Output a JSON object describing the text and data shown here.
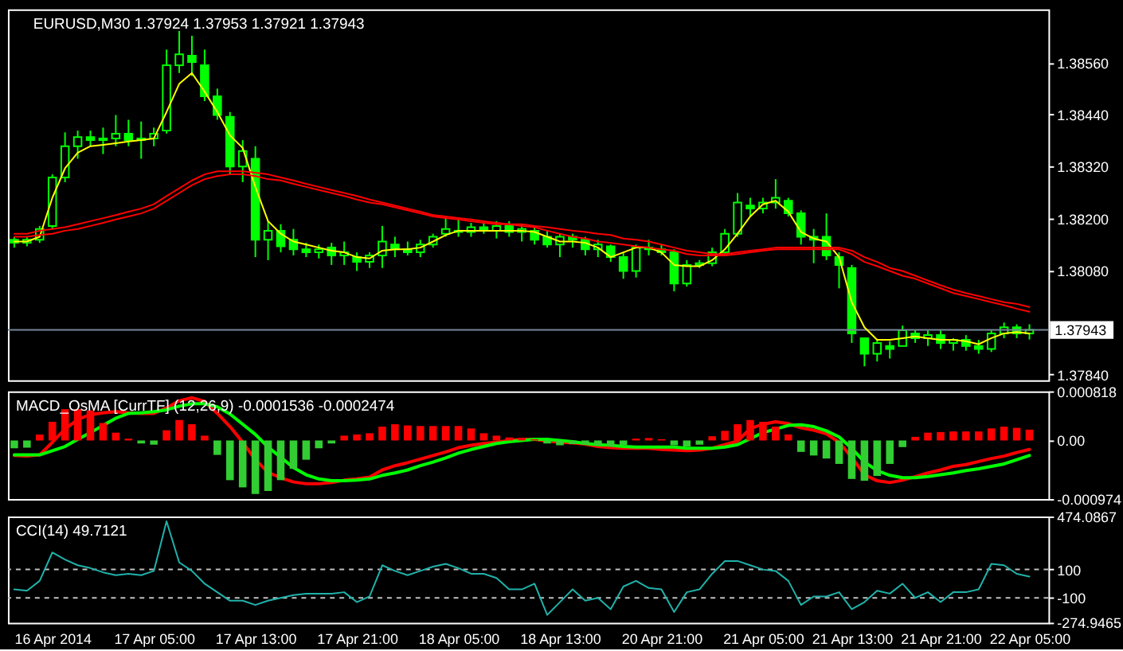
{
  "chart_data": [
    {
      "type": "candlestick",
      "title": "EURUSD,M30 1.37924 1.37953 1.37921 1.37943",
      "color": "#00ff00",
      "tick_labels": "y",
      "categories": [
        null,
        null,
        null,
        null,
        null,
        null,
        null,
        null,
        null,
        null,
        null,
        null,
        null,
        null,
        null,
        null,
        null,
        null,
        null,
        null,
        null,
        null,
        null,
        null,
        null,
        null,
        null,
        null,
        null,
        null,
        null,
        null,
        null,
        null,
        null,
        null,
        null,
        null,
        null,
        null,
        null,
        null,
        null,
        null,
        null,
        null,
        null,
        null,
        null,
        null,
        null,
        null,
        null,
        null,
        null,
        null,
        null,
        null,
        null,
        null,
        null,
        null,
        null,
        null,
        null,
        null,
        null,
        null,
        null,
        null,
        null,
        null,
        null,
        null,
        null,
        null,
        null,
        null,
        null,
        null,
        null
      ],
      "ohlc": [
        [
          1.38151,
          1.38158,
          1.38133,
          1.38144
        ],
        [
          1.38144,
          1.38158,
          1.38136,
          1.38151
        ],
        [
          1.38151,
          1.38183,
          1.38144,
          1.38176
        ],
        [
          1.38183,
          1.38302,
          1.38176,
          1.38295
        ],
        [
          1.38295,
          1.38399,
          1.38284,
          1.38367
        ],
        [
          1.38367,
          1.38403,
          1.38338,
          1.38388
        ],
        [
          1.38388,
          1.38403,
          1.38367,
          1.38381
        ],
        [
          1.38381,
          1.3841,
          1.38349,
          1.38385
        ],
        [
          1.38385,
          1.38439,
          1.38367,
          1.38396
        ],
        [
          1.38396,
          1.38428,
          1.38367,
          1.38381
        ],
        [
          1.38381,
          1.38424,
          1.38338,
          1.38385
        ],
        [
          1.38385,
          1.3841,
          1.38367,
          1.38396
        ],
        [
          1.38403,
          1.3859,
          1.38396,
          1.38554
        ],
        [
          1.38554,
          1.38633,
          1.38536,
          1.38579
        ],
        [
          1.38576,
          1.38622,
          1.38529,
          1.38561
        ],
        [
          1.38554,
          1.3859,
          1.38471,
          1.38482
        ],
        [
          1.38482,
          1.385,
          1.38428,
          1.38439
        ],
        [
          1.38435,
          1.38446,
          1.38302,
          1.3832
        ],
        [
          1.3832,
          1.38381,
          1.38284,
          1.38356
        ],
        [
          1.38338,
          1.38367,
          1.38111,
          1.38151
        ],
        [
          1.38151,
          1.38194,
          1.38104,
          1.38172
        ],
        [
          1.38172,
          1.38187,
          1.38122,
          1.38136
        ],
        [
          1.38151,
          1.38176,
          1.38115,
          1.38129
        ],
        [
          1.38129,
          1.38144,
          1.38111,
          1.38122
        ],
        [
          1.38122,
          1.3814,
          1.38108,
          1.38129
        ],
        [
          1.38133,
          1.38144,
          1.38093,
          1.38115
        ],
        [
          1.38115,
          1.38147,
          1.38093,
          1.38122
        ],
        [
          1.38111,
          1.38122,
          1.38079,
          1.381
        ],
        [
          1.381,
          1.38122,
          1.38086,
          1.38115
        ],
        [
          1.38115,
          1.38183,
          1.38086,
          1.38147
        ],
        [
          1.3814,
          1.38158,
          1.38111,
          1.38129
        ],
        [
          1.38129,
          1.38147,
          1.38115,
          1.38122
        ],
        [
          1.38122,
          1.38151,
          1.38111,
          1.3814
        ],
        [
          1.3814,
          1.38165,
          1.38133,
          1.38158
        ],
        [
          1.38165,
          1.38205,
          1.38158,
          1.38176
        ],
        [
          1.38172,
          1.38201,
          1.38158,
          1.38169
        ],
        [
          1.38169,
          1.3819,
          1.38158,
          1.3818
        ],
        [
          1.3818,
          1.38194,
          1.38165,
          1.38172
        ],
        [
          1.38172,
          1.38194,
          1.38154,
          1.38183
        ],
        [
          1.38183,
          1.38194,
          1.38158,
          1.38169
        ],
        [
          1.38169,
          1.38187,
          1.38147,
          1.38176
        ],
        [
          1.38172,
          1.38183,
          1.3814,
          1.38151
        ],
        [
          1.38158,
          1.38172,
          1.38133,
          1.3814
        ],
        [
          1.3814,
          1.38165,
          1.38111,
          1.38158
        ],
        [
          1.38158,
          1.38165,
          1.38133,
          1.38151
        ],
        [
          1.38151,
          1.38158,
          1.38115,
          1.38129
        ],
        [
          1.38129,
          1.38151,
          1.38111,
          1.3814
        ],
        [
          1.38136,
          1.3814,
          1.381,
          1.38111
        ],
        [
          1.38111,
          1.38122,
          1.38061,
          1.38079
        ],
        [
          1.38079,
          1.3814,
          1.38064,
          1.38133
        ],
        [
          1.38133,
          1.38151,
          1.38115,
          1.38129
        ],
        [
          1.38129,
          1.3814,
          1.38115,
          1.38122
        ],
        [
          1.38122,
          1.38129,
          1.38032,
          1.3805
        ],
        [
          1.3805,
          1.38104,
          1.38043,
          1.38093
        ],
        [
          1.38093,
          1.38104,
          1.38086,
          1.38097
        ],
        [
          1.38097,
          1.38133,
          1.3809,
          1.38122
        ],
        [
          1.38122,
          1.38176,
          1.38115,
          1.38165
        ],
        [
          1.38165,
          1.38259,
          1.38158,
          1.38237
        ],
        [
          1.3823,
          1.38248,
          1.38205,
          1.38223
        ],
        [
          1.38223,
          1.38248,
          1.38212,
          1.38237
        ],
        [
          1.38237,
          1.38291,
          1.38223,
          1.38248
        ],
        [
          1.38241,
          1.38248,
          1.38205,
          1.38212
        ],
        [
          1.38212,
          1.38219,
          1.3814,
          1.38158
        ],
        [
          1.38158,
          1.38176,
          1.38097,
          1.38151
        ],
        [
          1.38158,
          1.38212,
          1.38104,
          1.38115
        ],
        [
          1.38111,
          1.38122,
          1.38039,
          1.38093
        ],
        [
          1.38086,
          1.38093,
          1.37913,
          1.37935
        ],
        [
          1.37924,
          1.37924,
          1.37859,
          1.37888
        ],
        [
          1.37888,
          1.3792,
          1.3787,
          1.37913
        ],
        [
          1.37906,
          1.37917,
          1.37877,
          1.37899
        ],
        [
          1.37906,
          1.37953,
          1.37906,
          1.37942
        ],
        [
          1.37935,
          1.37942,
          1.37913,
          1.37924
        ],
        [
          1.37924,
          1.37942,
          1.37906,
          1.37931
        ],
        [
          1.37931,
          1.37942,
          1.37899,
          1.37913
        ],
        [
          1.37913,
          1.37924,
          1.37895,
          1.3792
        ],
        [
          1.3792,
          1.37931,
          1.37895,
          1.37906
        ],
        [
          1.37906,
          1.3792,
          1.37888,
          1.37899
        ],
        [
          1.37899,
          1.37942,
          1.37892,
          1.37935
        ],
        [
          1.37935,
          1.3796,
          1.37924,
          1.37949
        ],
        [
          1.37949,
          1.37956,
          1.37924,
          1.37935
        ],
        [
          1.37935,
          1.37956,
          1.37921,
          1.37943
        ]
      ],
      "series": [
        {
          "type": "line",
          "color": "#ffff00",
          "values": [
            1.38147,
            1.38147,
            1.38158,
            1.38248,
            1.38316,
            1.38352,
            1.38367,
            1.3837,
            1.38374,
            1.38378,
            1.38381,
            1.38385,
            1.38446,
            1.38511,
            1.38536,
            1.38493,
            1.38446,
            1.38392,
            1.38363,
            1.38273,
            1.38194,
            1.38165,
            1.38147,
            1.3814,
            1.38133,
            1.38126,
            1.38122,
            1.38111,
            1.38108,
            1.38126,
            1.38129,
            1.38129,
            1.38133,
            1.38147,
            1.38162,
            1.38172,
            1.38172,
            1.38172,
            1.38172,
            1.38172,
            1.38172,
            1.38169,
            1.38158,
            1.38147,
            1.38147,
            1.38144,
            1.38133,
            1.38111,
            1.38122,
            1.38133,
            1.38133,
            1.38122,
            1.38093,
            1.3809,
            1.3809,
            1.38104,
            1.38129,
            1.38165,
            1.38205,
            1.38233,
            1.38241,
            1.38216,
            1.38169,
            1.38154,
            1.38147,
            1.38111,
            1.38007,
            1.37949,
            1.3792,
            1.3792,
            1.37924,
            1.37928,
            1.37924,
            1.3792,
            1.3792,
            1.37917,
            1.3791,
            1.37924,
            1.37935,
            1.37938,
            1.37935
          ]
        },
        {
          "type": "line",
          "color": "#ff0000",
          "values": [
            1.38165,
            1.38165,
            1.38172,
            1.38176,
            1.3818,
            1.38187,
            1.38194,
            1.38201,
            1.38208,
            1.38216,
            1.38223,
            1.38233,
            1.38252,
            1.3827,
            1.38288,
            1.38302,
            1.38309,
            1.38309,
            1.38309,
            1.38306,
            1.38302,
            1.38295,
            1.38288,
            1.3828,
            1.38273,
            1.38266,
            1.38259,
            1.38252,
            1.38244,
            1.38237,
            1.3823,
            1.38223,
            1.38216,
            1.38208,
            1.38205,
            1.38201,
            1.38198,
            1.38194,
            1.3819,
            1.38187,
            1.38187,
            1.38183,
            1.3818,
            1.38176,
            1.38172,
            1.38169,
            1.38165,
            1.38162,
            1.38154,
            1.38151,
            1.38147,
            1.3814,
            1.38133,
            1.38126,
            1.38122,
            1.38118,
            1.38118,
            1.38122,
            1.38126,
            1.38129,
            1.38133,
            1.38133,
            1.38133,
            1.38133,
            1.38133,
            1.38133,
            1.38126,
            1.38111,
            1.381,
            1.38086,
            1.38079,
            1.38068,
            1.38057,
            1.38046,
            1.38036,
            1.38028,
            1.38021,
            1.38014,
            1.38007,
            1.38003,
            1.37996
          ]
        },
        {
          "type": "line",
          "color": "#ff0000",
          "values": [
            1.38158,
            1.38158,
            1.38162,
            1.38165,
            1.38172,
            1.38176,
            1.38183,
            1.3819,
            1.38198,
            1.38205,
            1.38212,
            1.38223,
            1.38241,
            1.38259,
            1.38277,
            1.38291,
            1.38298,
            1.38302,
            1.38302,
            1.38298,
            1.38291,
            1.38288,
            1.3828,
            1.38273,
            1.38266,
            1.38259,
            1.38252,
            1.38244,
            1.38237,
            1.38233,
            1.38226,
            1.38219,
            1.38212,
            1.38205,
            1.38201,
            1.38198,
            1.38194,
            1.3819,
            1.38187,
            1.38187,
            1.38183,
            1.3818,
            1.38172,
            1.38165,
            1.38158,
            1.38154,
            1.38147,
            1.38144,
            1.3814,
            1.38136,
            1.38133,
            1.38129,
            1.38126,
            1.38118,
            1.38115,
            1.38115,
            1.38115,
            1.38118,
            1.38122,
            1.38126,
            1.38129,
            1.38129,
            1.38129,
            1.38129,
            1.38129,
            1.38129,
            1.38118,
            1.381,
            1.3809,
            1.38079,
            1.38068,
            1.38061,
            1.3805,
            1.38039,
            1.38028,
            1.38021,
            1.38014,
            1.38007,
            1.38,
            1.37992,
            1.37985
          ]
        }
      ],
      "ylim": [
        1.37827,
        1.38683
      ],
      "yticks": [
        {
          "value": 1.3856,
          "label": "1.38560"
        },
        {
          "value": 1.3844,
          "label": "1.38440"
        },
        {
          "value": 1.3832,
          "label": "1.38320"
        },
        {
          "value": 1.382,
          "label": "1.38200"
        },
        {
          "value": 1.3808,
          "label": "1.38080"
        },
        {
          "value": 1.3784,
          "label": "1.37840"
        }
      ],
      "ref_lines": [
        {
          "axis": "y",
          "value": 1.37943,
          "label": "1.37943",
          "color": "#778899"
        }
      ]
    },
    {
      "type": "bar",
      "title": "MACD_OsMA [CurrTF] (12,26,9) -0.0001536 -0.0002474",
      "tick_labels": "y",
      "categories": [
        null,
        null,
        null,
        null,
        null,
        null,
        null,
        null,
        null,
        null,
        null,
        null,
        null,
        null,
        null,
        null,
        null,
        null,
        null,
        null,
        null,
        null,
        null,
        null,
        null,
        null,
        null,
        null,
        null,
        null,
        null,
        null,
        null,
        null,
        null,
        null,
        null,
        null,
        null,
        null,
        null,
        null,
        null,
        null,
        null,
        null,
        null,
        null,
        null,
        null,
        null,
        null,
        null,
        null,
        null,
        null,
        null,
        null,
        null,
        null,
        null,
        null,
        null,
        null,
        null,
        null,
        null,
        null,
        null,
        null,
        null,
        null,
        null,
        null,
        null,
        null,
        null,
        null,
        null,
        null,
        null
      ],
      "series": [
        {
          "type": "bar",
          "values": [
            -0.00013,
            -0.00012,
            0.0001,
            0.00031,
            0.00052,
            0.00052,
            0.0005,
            0.00029,
            0.00013,
            3e-05,
            -5e-05,
            -7e-05,
            0.00017,
            0.00034,
            0.00027,
            8e-05,
            -0.00024,
            -0.00066,
            -0.00078,
            -0.00089,
            -0.00084,
            -0.00066,
            -0.00047,
            -0.00032,
            -0.00013,
            -5e-05,
            8e-05,
            0.0001,
            0.00012,
            0.00023,
            0.00027,
            0.00025,
            0.00024,
            0.00024,
            0.00024,
            0.00024,
            0.0002,
            0.00012,
            8e-05,
            5e-05,
            4e-05,
            2e-05,
            -5e-05,
            -8e-05,
            -6e-05,
            -7e-05,
            -8e-05,
            -0.0001,
            -8e-05,
            3e-05,
            4e-05,
            2e-05,
            -8e-05,
            -0.0001,
            -7e-05,
            7e-05,
            0.00016,
            0.00027,
            0.00034,
            0.00031,
            0.00023,
            0.0001,
            -0.00019,
            -0.00025,
            -0.0003,
            -0.00039,
            -0.00064,
            -0.00067,
            -0.00059,
            -0.00039,
            -0.00011,
            6e-05,
            0.00013,
            0.00014,
            0.00015,
            0.00015,
            0.00015,
            0.0002,
            0.00023,
            0.00021,
            0.00018
          ],
          "colors": [
            "#32cd32",
            "#32cd32",
            "#ff0000",
            "#ff0000",
            "#ff0000",
            "#ff0000",
            "#ff0000",
            "#ff0000",
            "#ff0000",
            "#ff0000",
            "#32cd32",
            "#32cd32",
            "#ff0000",
            "#ff0000",
            "#ff0000",
            "#ff0000",
            "#32cd32",
            "#32cd32",
            "#32cd32",
            "#32cd32",
            "#32cd32",
            "#32cd32",
            "#32cd32",
            "#32cd32",
            "#32cd32",
            "#32cd32",
            "#ff0000",
            "#ff0000",
            "#ff0000",
            "#ff0000",
            "#ff0000",
            "#ff0000",
            "#ff0000",
            "#ff0000",
            "#ff0000",
            "#ff0000",
            "#ff0000",
            "#ff0000",
            "#ff0000",
            "#ff0000",
            "#ff0000",
            "#ff0000",
            "#32cd32",
            "#32cd32",
            "#32cd32",
            "#32cd32",
            "#32cd32",
            "#32cd32",
            "#32cd32",
            "#ff0000",
            "#ff0000",
            "#ff0000",
            "#32cd32",
            "#32cd32",
            "#32cd32",
            "#ff0000",
            "#ff0000",
            "#ff0000",
            "#ff0000",
            "#ff0000",
            "#ff0000",
            "#ff0000",
            "#32cd32",
            "#32cd32",
            "#32cd32",
            "#32cd32",
            "#32cd32",
            "#32cd32",
            "#32cd32",
            "#32cd32",
            "#32cd32",
            "#ff0000",
            "#ff0000",
            "#ff0000",
            "#ff0000",
            "#ff0000",
            "#ff0000",
            "#ff0000",
            "#ff0000",
            "#ff0000",
            "#ff0000"
          ]
        },
        {
          "type": "line",
          "color": "#ff0000",
          "values": [
            -0.00025,
            -0.00026,
            -0.00024,
            -3e-05,
            0.00019,
            0.00035,
            0.00043,
            0.00046,
            0.00048,
            0.00046,
            0.00045,
            0.00045,
            0.00054,
            0.00066,
            0.00071,
            0.00065,
            0.00045,
            0.00023,
            -3e-05,
            -0.00032,
            -0.00053,
            -0.00062,
            -0.00069,
            -0.00072,
            -0.00072,
            -0.0007,
            -0.00066,
            -0.00064,
            -0.00061,
            -0.00049,
            -0.00042,
            -0.00037,
            -0.00031,
            -0.00025,
            -0.00019,
            -0.00012,
            -8e-05,
            -5e-05,
            -3e-05,
            0,
            2e-05,
            2e-05,
            -1e-05,
            -3e-05,
            -4e-05,
            -6e-05,
            -0.0001,
            -0.00012,
            -0.00013,
            -0.00013,
            -0.00013,
            -0.00015,
            -0.00016,
            -0.00017,
            -0.00016,
            -0.00013,
            -7e-05,
            -1e-05,
            0.0002,
            0.00027,
            0.00031,
            0.00028,
            0.00021,
            0.00017,
            0.00011,
            -3e-05,
            -0.00028,
            -0.00057,
            -0.00067,
            -0.0007,
            -0.00066,
            -0.0006,
            -0.00054,
            -0.00049,
            -0.00043,
            -0.0004,
            -0.00035,
            -0.0003,
            -0.00026,
            -0.0002,
            -0.00015
          ]
        },
        {
          "type": "line",
          "color": "#00ff00",
          "values": [
            -0.00024,
            -0.00024,
            -0.00024,
            -0.00017,
            -0.0001,
            2e-05,
            0.00013,
            0.00025,
            0.00037,
            0.00045,
            0.00046,
            0.00048,
            0.00051,
            0.00057,
            0.00061,
            0.00061,
            0.00056,
            0.00044,
            0.00027,
            0.0001,
            -0.00011,
            -0.00028,
            -0.00045,
            -0.00057,
            -0.00064,
            -0.00067,
            -0.00067,
            -0.00066,
            -0.00064,
            -0.00058,
            -0.00054,
            -0.00049,
            -0.00042,
            -0.00036,
            -0.00029,
            -0.00021,
            -0.00015,
            -0.0001,
            -5e-05,
            -2e-05,
            0,
            2e-05,
            2e-05,
            0,
            -2e-05,
            -5e-05,
            -7e-05,
            -8e-05,
            -0.0001,
            -0.00011,
            -0.00011,
            -0.00011,
            -0.00011,
            -0.00013,
            -0.00013,
            -0.00013,
            -0.00011,
            -7e-05,
            3e-05,
            0.00013,
            0.00019,
            0.00025,
            0.00026,
            0.00023,
            0.00016,
            6e-05,
            -0.00013,
            -0.00036,
            -0.0005,
            -0.00058,
            -0.00062,
            -0.00062,
            -0.0006,
            -0.00057,
            -0.00054,
            -0.0005,
            -0.00047,
            -0.00043,
            -0.00039,
            -0.00032,
            -0.00025
          ]
        }
      ],
      "ylim": [
        -0.000974,
        0.000818
      ],
      "yticks": [
        0.000818,
        {
          "value": 0,
          "label": "0.00"
        },
        -0.000974
      ]
    },
    {
      "type": "line",
      "title": "CCI(14) 49.7121",
      "categories": [
        null,
        null,
        null,
        "16 Apr 2014",
        null,
        null,
        null,
        null,
        null,
        null,
        null,
        "17 Apr 05:00",
        null,
        null,
        null,
        null,
        null,
        null,
        null,
        "17 Apr 13:00",
        null,
        null,
        null,
        null,
        null,
        null,
        null,
        "17 Apr 21:00",
        null,
        null,
        null,
        null,
        null,
        null,
        null,
        "18 Apr 05:00",
        null,
        null,
        null,
        null,
        null,
        null,
        null,
        "18 Apr 13:00",
        null,
        null,
        null,
        null,
        null,
        null,
        null,
        "20 Apr 21:00",
        null,
        null,
        null,
        null,
        null,
        null,
        null,
        "21 Apr 05:00",
        null,
        null,
        null,
        null,
        null,
        null,
        "21 Apr 13:00",
        null,
        null,
        null,
        null,
        null,
        null,
        "21 Apr 21:00",
        null,
        null,
        null,
        null,
        null,
        null,
        "22 Apr 05:00"
      ],
      "series": [
        {
          "color": "#20b2aa",
          "values": [
            -40,
            -50,
            20,
            220,
            170,
            130,
            110,
            80,
            60,
            70,
            60,
            90,
            440,
            150,
            90,
            0,
            -60,
            -120,
            -120,
            -150,
            -120,
            -100,
            -80,
            -70,
            -70,
            -70,
            -60,
            -130,
            -90,
            130,
            90,
            60,
            90,
            120,
            140,
            110,
            70,
            70,
            40,
            -40,
            -40,
            0,
            -220,
            -130,
            -40,
            -120,
            -100,
            -180,
            -20,
            20,
            -30,
            -40,
            -200,
            -60,
            -40,
            70,
            160,
            160,
            130,
            100,
            90,
            20,
            -150,
            -90,
            -90,
            -60,
            -180,
            -130,
            -50,
            -70,
            0,
            -100,
            -60,
            -130,
            -60,
            -60,
            -40,
            140,
            130,
            70,
            50
          ]
        }
      ],
      "ylim": [
        -274.9465,
        474.0867
      ],
      "yticks": [
        474.0867,
        100,
        -100,
        -274.9465
      ],
      "ref_lines": [
        {
          "axis": "y",
          "value": 100,
          "color": "#c0c0c0",
          "line_style": "dashed"
        },
        {
          "axis": "y",
          "value": -100,
          "color": "#c0c0c0",
          "line_style": "dashed"
        }
      ]
    }
  ]
}
